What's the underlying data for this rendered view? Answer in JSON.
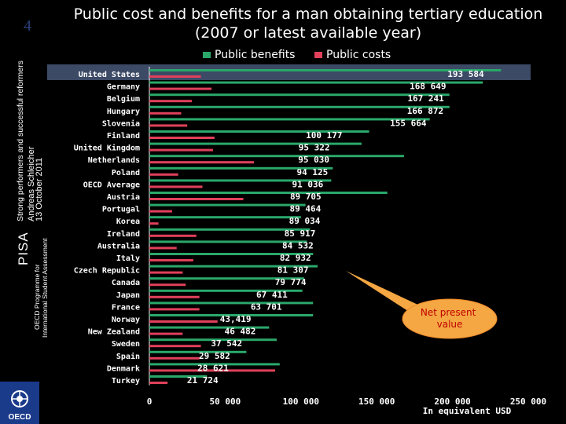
{
  "page_number": "4",
  "sidebar": {
    "pisa": "PISA",
    "strong_performers": "Strong performers and successful reformers",
    "author": "Andreas Schleicher",
    "oecd_line1": "OECD Programme for",
    "oecd_line2": "International Student Assessment",
    "date": "13 October 2011",
    "logo_text": "OECD"
  },
  "title": {
    "line1": "Public cost and benefits for a man obtaining tertiary education",
    "line2": "(2007 or latest available year)"
  },
  "legend": [
    {
      "label": "Public benefits",
      "color": "#2aa86a"
    },
    {
      "label": "Public costs",
      "color": "#e0405a"
    }
  ],
  "callout": {
    "line1": "Net present",
    "line2": "value"
  },
  "chart_data": {
    "type": "bar",
    "orientation": "horizontal",
    "xlabel": "In equivalent USD",
    "xlim": [
      0,
      250000
    ],
    "x_ticks": [
      "0",
      "50 000",
      "100 000",
      "150 000",
      "200 000",
      "250 000"
    ],
    "categories": [
      "United States",
      "Germany",
      "Belgium",
      "Hungary",
      "Slovenia",
      "Finland",
      "United Kingdom",
      "Netherlands",
      "Poland",
      "OECD Average",
      "Austria",
      "Portugal",
      "Korea",
      "Ireland",
      "Australia",
      "Italy",
      "Czech Republic",
      "Canada",
      "Japan",
      "France",
      "Norway",
      "New Zealand",
      "Sweden",
      "Spain",
      "Denmark",
      "Turkey"
    ],
    "series": [
      {
        "name": "Public benefits",
        "color": "#2aa86a",
        "values": [
          232000,
          220000,
          198000,
          198000,
          185000,
          145000,
          140000,
          168000,
          121000,
          120000,
          157000,
          103000,
          100000,
          106000,
          104000,
          108000,
          111000,
          102000,
          101000,
          108000,
          108000,
          79000,
          84000,
          64000,
          86000,
          38000
        ]
      },
      {
        "name": "Public costs",
        "color": "#e0405a",
        "values": [
          34000,
          41000,
          28000,
          21000,
          25000,
          43000,
          42000,
          69000,
          19000,
          35000,
          62000,
          15000,
          6000,
          31000,
          18000,
          29000,
          22000,
          24000,
          33000,
          33000,
          45000,
          22000,
          34000,
          33000,
          83000,
          12000
        ]
      },
      {
        "name": "Net present value",
        "values": [
          193584,
          168649,
          167241,
          166872,
          155664,
          100177,
          95322,
          95030,
          94125,
          91036,
          89705,
          89464,
          89034,
          85917,
          84532,
          82932,
          81307,
          79774,
          67411,
          63701,
          43419,
          46482,
          37542,
          29582,
          28621,
          21724
        ],
        "labels": [
          "193 584",
          "168 649",
          "167 241",
          "166 872",
          "155 664",
          "100 177",
          "95 322",
          "95 030",
          "94 125",
          "91 036",
          "89 705",
          "89 464",
          "89 034",
          "85 917",
          "84 532",
          "82 932",
          "81 307",
          "79 774",
          "67 411",
          "63 701",
          "43,419",
          "46 482",
          "37 542",
          "29 582",
          "28 621",
          "21 724"
        ]
      }
    ],
    "legend_position": "top"
  }
}
